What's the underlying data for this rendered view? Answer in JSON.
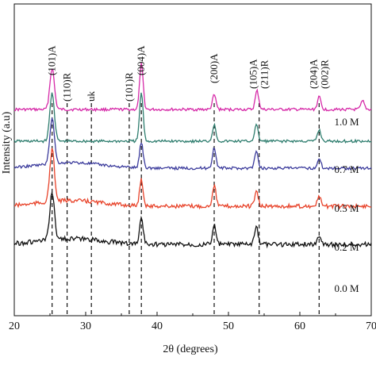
{
  "chart_data": {
    "type": "line",
    "xlabel": "2θ (degrees)",
    "ylabel": "Intensity (a.u)",
    "xlim": [
      20,
      70
    ],
    "x_ticks": [
      "20",
      "30",
      "40",
      "50",
      "60",
      "70"
    ],
    "grid": false,
    "reference_lines": [
      {
        "x": 25.3,
        "label": "(101)A"
      },
      {
        "x": 27.4,
        "label": "(110)R"
      },
      {
        "x": 30.8,
        "label": "uk"
      },
      {
        "x": 36.1,
        "label": "(101)R"
      },
      {
        "x": 37.8,
        "label": "(004)A"
      },
      {
        "x": 48.0,
        "label": "(200)A"
      },
      {
        "x": 54.3,
        "label": "(105)A (211)R"
      },
      {
        "x": 62.7,
        "label": "(204)A (002)R"
      }
    ],
    "series": [
      {
        "name": "1.0 M",
        "color": "#d62aa8",
        "peaks": [
          [
            25.3,
            1.0
          ],
          [
            37.8,
            1.1
          ],
          [
            48.0,
            0.35
          ],
          [
            54.0,
            0.45
          ],
          [
            62.7,
            0.3
          ],
          [
            68.8,
            0.2
          ]
        ]
      },
      {
        "name": "0.7 M",
        "color": "#2e7d6e",
        "peaks": [
          [
            25.3,
            1.05
          ],
          [
            37.8,
            1.05
          ],
          [
            48.0,
            0.35
          ],
          [
            53.9,
            0.35
          ],
          [
            62.7,
            0.25
          ]
        ]
      },
      {
        "name": "0.5 M",
        "color": "#3b3b9c",
        "peaks": [
          [
            25.3,
            1.0
          ],
          [
            37.8,
            0.55
          ],
          [
            48.0,
            0.45
          ],
          [
            53.9,
            0.35
          ],
          [
            62.7,
            0.2
          ]
        ]
      },
      {
        "name": "0.2 M",
        "color": "#e8432a",
        "peaks": [
          [
            25.3,
            1.1
          ],
          [
            37.8,
            0.55
          ],
          [
            48.0,
            0.45
          ],
          [
            53.9,
            0.3
          ],
          [
            62.7,
            0.2
          ]
        ]
      },
      {
        "name": "0.0 M",
        "color": "#111111",
        "peaks": [
          [
            25.3,
            1.0
          ],
          [
            37.8,
            0.55
          ],
          [
            48.0,
            0.4
          ],
          [
            53.9,
            0.35
          ],
          [
            62.7,
            0.2
          ]
        ]
      }
    ]
  }
}
